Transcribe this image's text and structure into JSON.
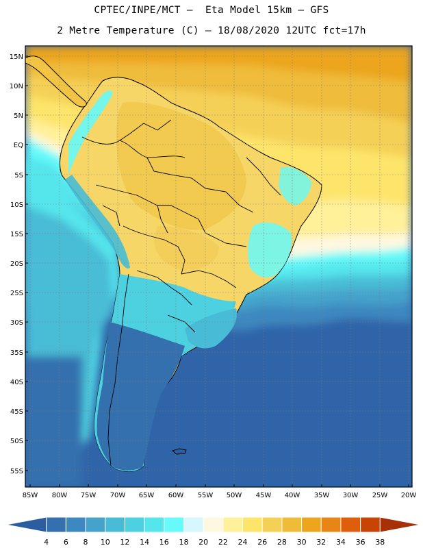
{
  "header": {
    "line1": "CPTEC/INPE/MCT –  Eta Model 15km – GFS",
    "line2": "2 Metre Temperature (C) – 18/08/2020 12UTC fct=17h"
  },
  "map": {
    "lat_labels": [
      "15N",
      "10N",
      "5N",
      "EQ",
      "5S",
      "10S",
      "15S",
      "20S",
      "25S",
      "30S",
      "35S",
      "40S",
      "45S",
      "50S",
      "55S"
    ],
    "lon_labels": [
      "85W",
      "80W",
      "75W",
      "70W",
      "65W",
      "60W",
      "55W",
      "50W",
      "45W",
      "40W",
      "35W",
      "30W",
      "25W",
      "20W"
    ]
  },
  "colorbar": {
    "labels": [
      "4",
      "6",
      "8",
      "10",
      "12",
      "14",
      "16",
      "18",
      "20",
      "22",
      "24",
      "26",
      "28",
      "30",
      "32",
      "34",
      "36",
      "38"
    ],
    "colors": [
      "#2a5e9e",
      "#3470ae",
      "#3d88c0",
      "#45a3cb",
      "#48bcd6",
      "#4dd1e0",
      "#55e6ec",
      "#66fafa",
      "#d5f7fd",
      "#fff8e0",
      "#fff09a",
      "#fde46b",
      "#f5d056",
      "#efbc3a",
      "#eca51c",
      "#e88516",
      "#de5e0c",
      "#c84405",
      "#a83006"
    ]
  },
  "legend_colors": {
    "ocean_far": "#2f64a8",
    "land_warm": "#f6d667",
    "atlantic_north": "#f2c34a"
  }
}
